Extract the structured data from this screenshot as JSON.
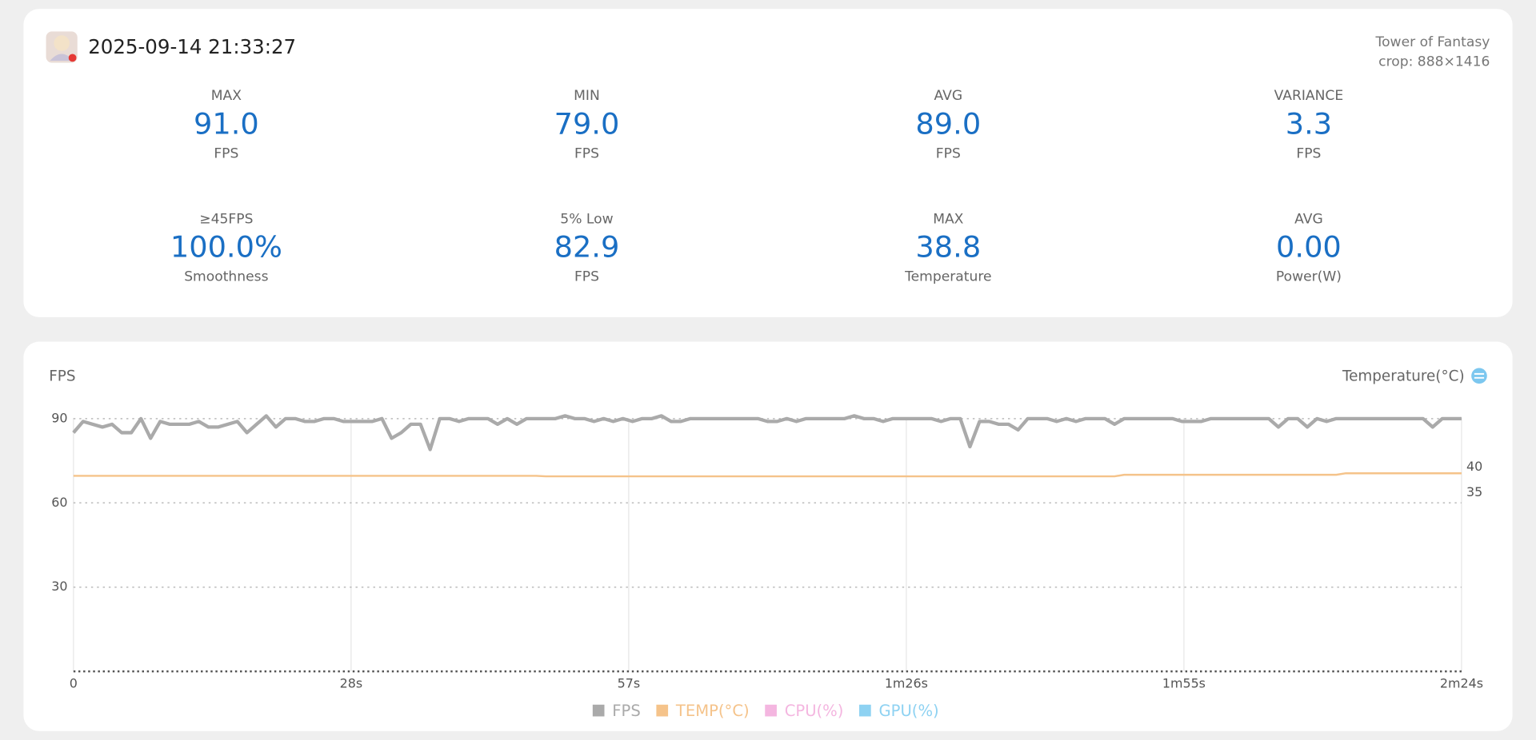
{
  "header": {
    "datetime": "2025-09-14 21:33:27",
    "game": "Tower of Fantasy",
    "crop": "crop: 888×1416"
  },
  "stats": [
    {
      "label": "MAX",
      "value": "91.0",
      "unit": "FPS"
    },
    {
      "label": "MIN",
      "value": "79.0",
      "unit": "FPS"
    },
    {
      "label": "AVG",
      "value": "89.0",
      "unit": "FPS"
    },
    {
      "label": "VARIANCE",
      "value": "3.3",
      "unit": "FPS"
    },
    {
      "label": "≥45FPS",
      "value": "100.0%",
      "unit": "Smoothness"
    },
    {
      "label": "5% Low",
      "value": "82.9",
      "unit": "FPS"
    },
    {
      "label": "MAX",
      "value": "38.8",
      "unit": "Temperature"
    },
    {
      "label": "AVG",
      "value": "0.00",
      "unit": "Power(W)"
    }
  ],
  "chart_data": {
    "type": "line",
    "ylabel": "FPS",
    "y2label": "Temperature(°C)",
    "xlim": [
      0,
      144
    ],
    "xticks": [
      0,
      {
        "value": 28.8,
        "label": "28s"
      },
      {
        "value": 57.6,
        "label": "57s"
      },
      {
        "value": 86.4,
        "label": "1m26s"
      },
      {
        "value": 115.2,
        "label": "1m55s"
      },
      {
        "value": 144,
        "label": "2m24s"
      }
    ],
    "ylim": [
      0,
      100
    ],
    "yticks": [
      30,
      60,
      90
    ],
    "y2lim": [
      0,
      55
    ],
    "y2ticks": [
      35,
      40
    ],
    "grid": true,
    "series": [
      {
        "name": "FPS",
        "color": "#aaaaaa",
        "x": [
          0,
          1,
          2,
          3,
          4,
          5,
          6,
          7,
          8,
          9,
          10,
          11,
          12,
          13,
          14,
          15,
          16,
          17,
          18,
          19,
          20,
          21,
          22,
          23,
          24,
          25,
          26,
          27,
          28,
          29,
          30,
          31,
          32,
          33,
          34,
          35,
          36,
          37,
          38,
          39,
          40,
          41,
          42,
          43,
          44,
          45,
          46,
          47,
          48,
          49,
          50,
          51,
          52,
          53,
          54,
          55,
          56,
          57,
          58,
          59,
          60,
          61,
          62,
          63,
          64,
          65,
          66,
          67,
          68,
          69,
          70,
          71,
          72,
          73,
          74,
          75,
          76,
          77,
          78,
          79,
          80,
          81,
          82,
          83,
          84,
          85,
          86,
          87,
          88,
          89,
          90,
          91,
          92,
          93,
          94,
          95,
          96,
          97,
          98,
          99,
          100,
          101,
          102,
          103,
          104,
          105,
          106,
          107,
          108,
          109,
          110,
          111,
          112,
          113,
          114,
          115,
          116,
          117,
          118,
          119,
          120,
          121,
          122,
          123,
          124,
          125,
          126,
          127,
          128,
          129,
          130,
          131,
          132,
          133,
          134,
          135,
          136,
          137,
          138,
          139,
          140,
          141,
          142,
          143,
          144
        ],
        "values": [
          85,
          89,
          88,
          87,
          88,
          85,
          85,
          90,
          83,
          89,
          88,
          88,
          88,
          89,
          87,
          87,
          88,
          89,
          85,
          88,
          91,
          87,
          90,
          90,
          89,
          89,
          90,
          90,
          89,
          89,
          89,
          89,
          90,
          83,
          85,
          88,
          88,
          79,
          90,
          90,
          89,
          90,
          90,
          90,
          88,
          90,
          88,
          90,
          90,
          90,
          90,
          91,
          90,
          90,
          89,
          90,
          89,
          90,
          89,
          90,
          90,
          91,
          89,
          89,
          90,
          90,
          90,
          90,
          90,
          90,
          90,
          90,
          89,
          89,
          90,
          89,
          90,
          90,
          90,
          90,
          90,
          91,
          90,
          90,
          89,
          90,
          90,
          90,
          90,
          90,
          89,
          90,
          90,
          80,
          89,
          89,
          88,
          88,
          86,
          90,
          90,
          90,
          89,
          90,
          89,
          90,
          90,
          90,
          88,
          90,
          90,
          90,
          90,
          90,
          90,
          89,
          89,
          89,
          90,
          90,
          90,
          90,
          90,
          90,
          90,
          87,
          90,
          90,
          87,
          90,
          89,
          90,
          90,
          90,
          90,
          90,
          90,
          90,
          90,
          90,
          90,
          87,
          90,
          90,
          90
        ]
      },
      {
        "name": "TEMP(°C)",
        "color": "#f5c38a",
        "axis": "y2",
        "x": [
          0,
          48,
          49,
          108,
          109,
          131,
          132,
          144
        ],
        "values": [
          38.3,
          38.3,
          38.2,
          38.2,
          38.5,
          38.5,
          38.8,
          38.8
        ]
      },
      {
        "name": "CPU(%)",
        "color": "#f4b6e0"
      },
      {
        "name": "GPU(%)",
        "color": "#8ed2f2"
      }
    ]
  }
}
